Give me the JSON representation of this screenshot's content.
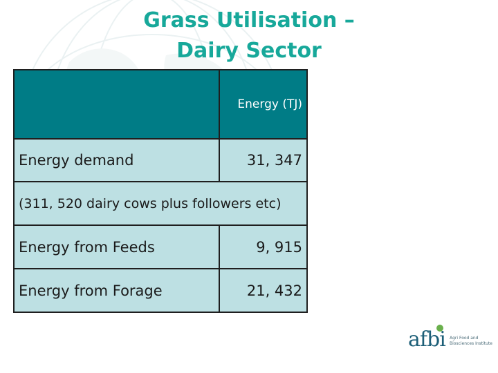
{
  "slide": {
    "title_line1": "Grass Utilisation –",
    "title_line2": "Dairy Sector"
  },
  "table": {
    "header": {
      "label": "",
      "unit": "Energy (TJ)"
    },
    "rows": [
      {
        "label": "Energy demand",
        "value": "31, 347"
      },
      {
        "note": "(311, 520 dairy cows plus followers etc)"
      },
      {
        "label": "Energy from Feeds",
        "value": "9, 915"
      },
      {
        "label": "Energy from Forage",
        "value": "21, 432"
      }
    ]
  },
  "logo": {
    "word": "afbi",
    "subtitle": "Agri Food and Biosciences Institute"
  },
  "colors": {
    "title": "#17a89a",
    "header_fill": "#007c86",
    "row_fill": "#bde0e3",
    "logo": "#1d5f78"
  }
}
